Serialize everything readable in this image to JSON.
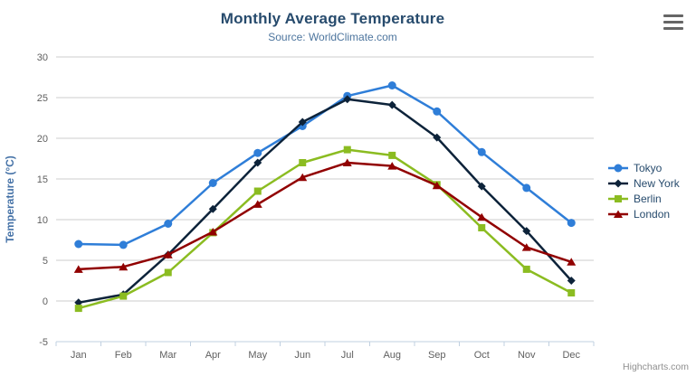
{
  "chart": {
    "title": "Monthly Average Temperature",
    "subtitle": "Source: WorldClimate.com",
    "credits_label": "Highcharts.com",
    "icons": {
      "context_menu": "hamburger-icon"
    },
    "palette": {
      "title_color": "#274b6d",
      "subtitle_color": "#4d759e",
      "axis_label_color": "#606060",
      "axis_title_color": "#4572a7",
      "gridline_color": "#cccccc",
      "axis_line_color": "#c0d0e0",
      "legend_text_color": "#274b6d",
      "credits_color": "#8f8f8f",
      "menu_icon_color": "#666666"
    }
  },
  "chart_data": {
    "type": "line",
    "title": "Monthly Average Temperature",
    "subtitle": "Source: WorldClimate.com",
    "categories": [
      "Jan",
      "Feb",
      "Mar",
      "Apr",
      "May",
      "Jun",
      "Jul",
      "Aug",
      "Sep",
      "Oct",
      "Nov",
      "Dec"
    ],
    "series": [
      {
        "name": "Tokyo",
        "color": "#2f7ed8",
        "marker": "circle",
        "values": [
          7.0,
          6.9,
          9.5,
          14.5,
          18.2,
          21.5,
          25.2,
          26.5,
          23.3,
          18.3,
          13.9,
          9.6
        ]
      },
      {
        "name": "New York",
        "color": "#0d233a",
        "marker": "diamond",
        "values": [
          -0.2,
          0.8,
          5.7,
          11.3,
          17.0,
          22.0,
          24.8,
          24.1,
          20.1,
          14.1,
          8.6,
          2.5
        ]
      },
      {
        "name": "Berlin",
        "color": "#8bbc21",
        "marker": "square",
        "values": [
          -0.9,
          0.6,
          3.5,
          8.4,
          13.5,
          17.0,
          18.6,
          17.9,
          14.3,
          9.0,
          3.9,
          1.0
        ]
      },
      {
        "name": "London",
        "color": "#910000",
        "marker": "triangle",
        "values": [
          3.9,
          4.2,
          5.7,
          8.5,
          11.9,
          15.2,
          17.0,
          16.6,
          14.2,
          10.3,
          6.6,
          4.8
        ]
      }
    ],
    "xlabel": "",
    "ylabel": "Temperature (°C)",
    "ylim": [
      -5,
      30
    ],
    "yticks": [
      -5,
      0,
      5,
      10,
      15,
      20,
      25,
      30
    ],
    "grid": true,
    "legend_position": "right"
  }
}
